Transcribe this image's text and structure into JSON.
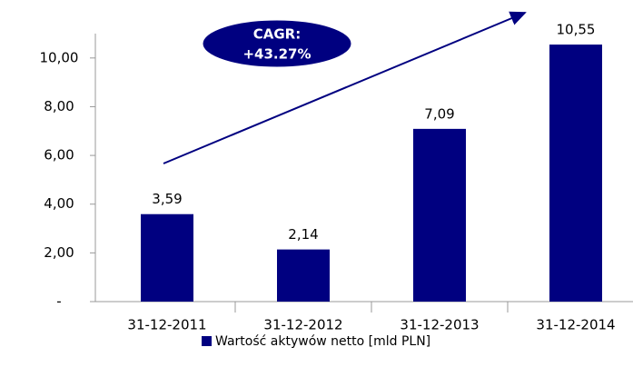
{
  "chart_data": {
    "type": "bar",
    "categories": [
      "31-12-2011",
      "31-12-2012",
      "31-12-2013",
      "31-12-2014"
    ],
    "series": [
      {
        "name": "Wartość aktywów netto [mld PLN]",
        "color": "#000080",
        "values": [
          3.59,
          2.14,
          7.09,
          10.55
        ],
        "value_labels": [
          "3,59",
          "2,14",
          "7,09",
          "10,55"
        ]
      }
    ],
    "ylim": [
      0,
      11
    ],
    "yticks": [
      {
        "value": 0,
        "label": "-"
      },
      {
        "value": 2,
        "label": "2,00"
      },
      {
        "value": 4,
        "label": "4,00"
      },
      {
        "value": 6,
        "label": "6,00"
      },
      {
        "value": 8,
        "label": "8,00"
      },
      {
        "value": 10,
        "label": "10,00"
      }
    ],
    "annotation": [
      "CAGR:",
      "+43.27%"
    ],
    "legend": "bottom"
  }
}
